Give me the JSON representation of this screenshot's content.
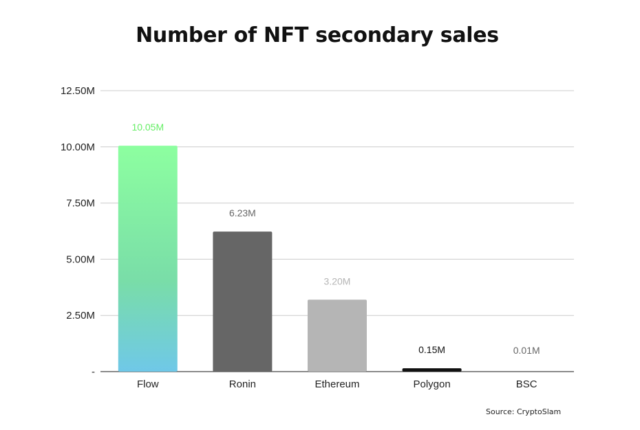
{
  "chart_data": {
    "type": "bar",
    "title": "Number of NFT secondary sales",
    "categories": [
      "Flow",
      "Ronin",
      "Ethereum",
      "Polygon",
      "BSC"
    ],
    "values": [
      10.05,
      6.23,
      3.2,
      0.15,
      0.01
    ],
    "value_unit": "M",
    "data_labels": [
      "10.05M",
      "6.23M",
      "3.20M",
      "0.15M",
      "0.01M"
    ],
    "y_ticks": [
      {
        "value": 0,
        "label": "-"
      },
      {
        "value": 2.5,
        "label": "2.50M"
      },
      {
        "value": 5,
        "label": "5.00M"
      },
      {
        "value": 7.5,
        "label": "7.50M"
      },
      {
        "value": 10,
        "label": "10.00M"
      },
      {
        "value": 12.5,
        "label": "12.50M"
      }
    ],
    "ylim": [
      0,
      12.5
    ],
    "grid": true,
    "xlabel": "",
    "ylabel": "",
    "colors": {
      "Flow": [
        "#8dffa0",
        "#79dda8",
        "#6fc8e8"
      ],
      "Ronin": "#666666",
      "Ethereum": "#b5b5b5",
      "Polygon": "#111111",
      "BSC": "#bbbbbb"
    },
    "label_colors": [
      "#66ee66",
      "#666666",
      "#b5b5b5",
      "#111111",
      "#666666"
    ]
  },
  "source_text": "Source: CryptoSlam"
}
